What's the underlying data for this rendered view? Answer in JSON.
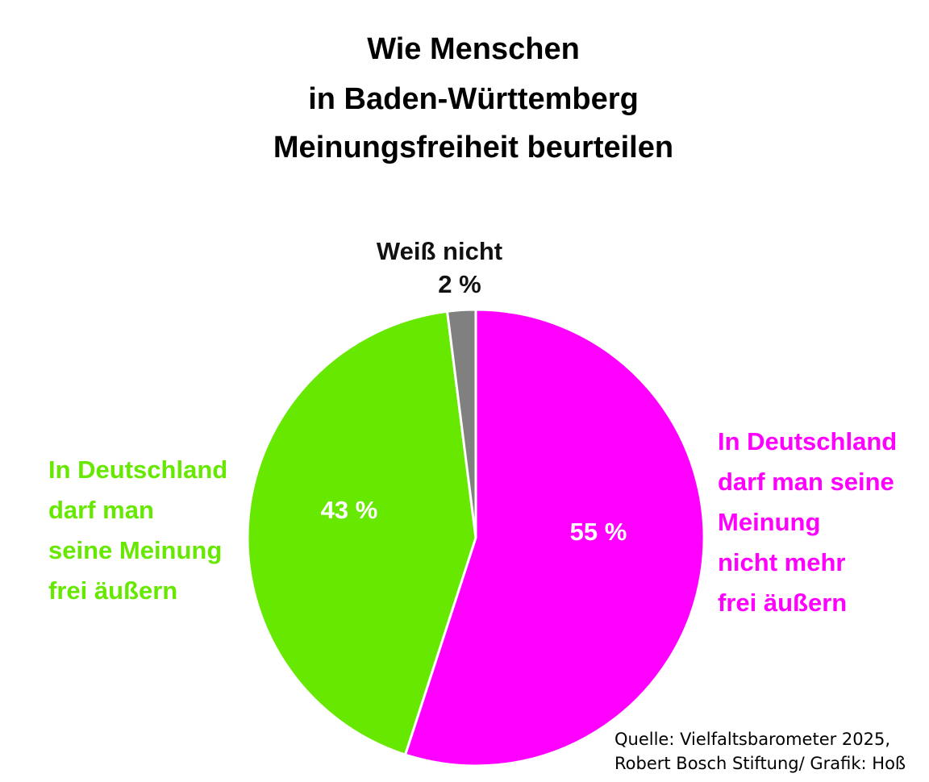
{
  "chart_data": {
    "type": "pie",
    "title": [
      "Wie Menschen",
      "in Baden-Württemberg",
      "Meinungsfreiheit beurteilen"
    ],
    "categories": [
      "In Deutschland\ndarf man seine\nMeinung\nnicht mehr\nfrei äußern",
      "In Deutschland\ndarf man\nseine Meinung\nfrei äußern",
      "Weiß nicht"
    ],
    "values": [
      55,
      43,
      2
    ],
    "value_labels": [
      "55 %",
      "43 %",
      "2 %"
    ],
    "colors": [
      "#ff00ff",
      "#66e800",
      "#808080"
    ],
    "source": [
      "Quelle: Vielfaltsbarometer 2025,",
      "Robert Bosch Stiftung/ Grafik: Hoß"
    ]
  }
}
